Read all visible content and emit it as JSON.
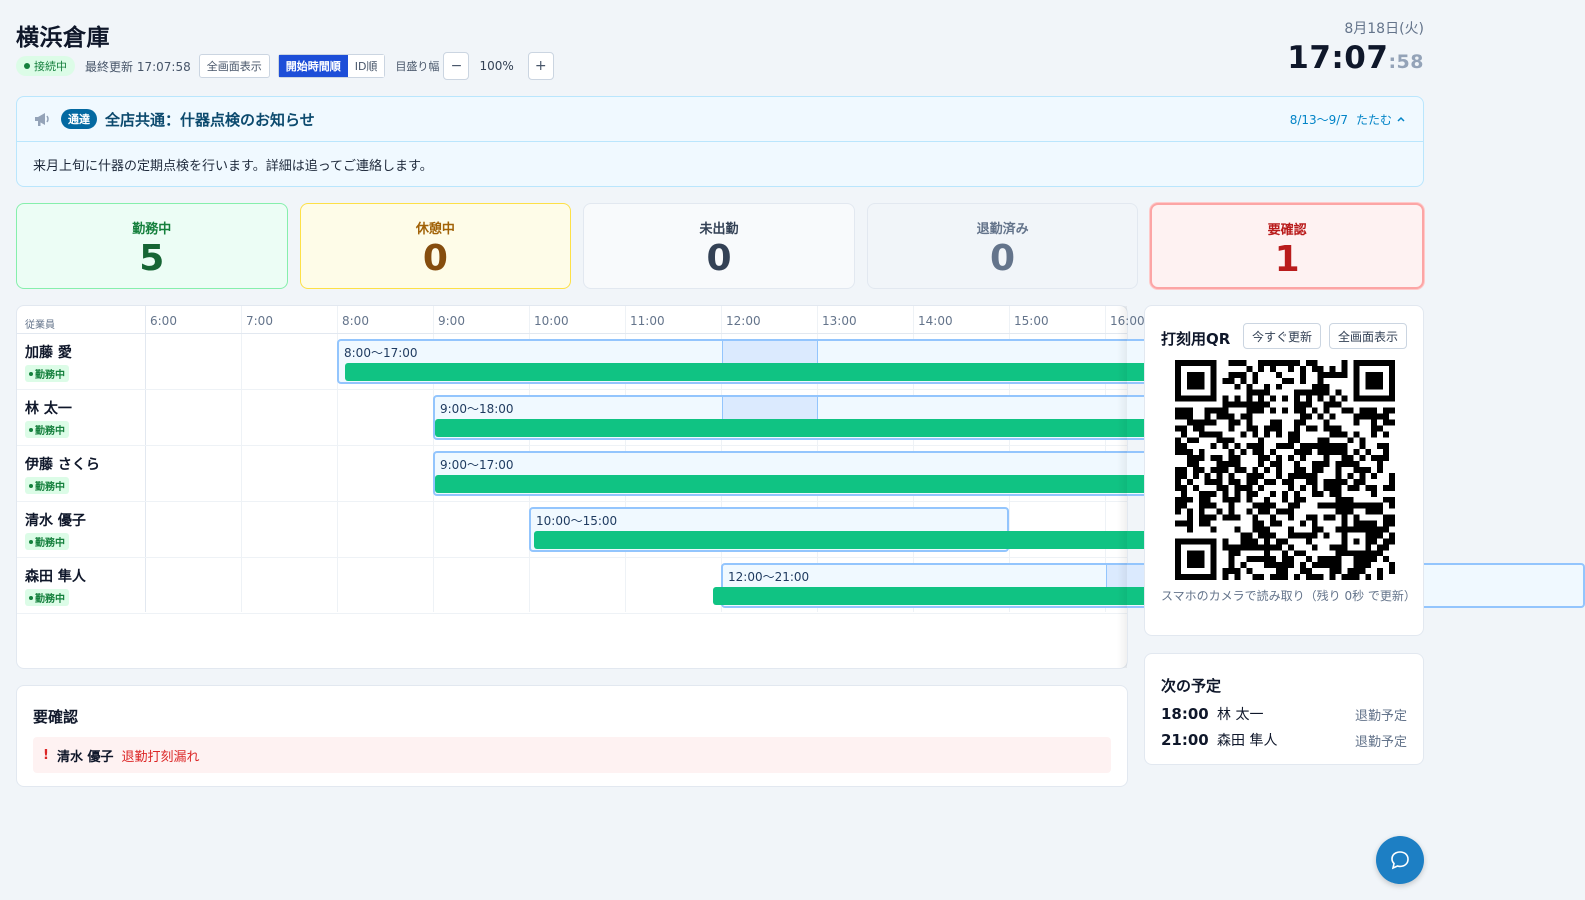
{
  "header": {
    "store_name": "横浜倉庫",
    "status": "接続中",
    "last_updated": "最終更新 17:07:58",
    "fullscreen_label": "全画面表示",
    "sort_options": [
      "開始時間順",
      "ID順"
    ],
    "sort_selected": "開始時間順",
    "scale_label": "目盛り幅",
    "zoom_minus": "−",
    "zoom_value": "100%",
    "zoom_plus": "+"
  },
  "clock": {
    "date": "8月18日(火)",
    "time": "17:07",
    "seconds": ":58"
  },
  "notice": {
    "tag": "通達",
    "title": "全店共通：什器点検のお知らせ",
    "period": "8/13〜9/7",
    "toggle_label": "たたむ",
    "body": "来月上旬に什器の定期点検を行います。詳細は追ってご連絡します。"
  },
  "stats": {
    "working": {
      "label": "勤務中",
      "value": "5"
    },
    "on_break": {
      "label": "休憩中",
      "value": "0"
    },
    "not_clocked_in": {
      "label": "未出勤",
      "value": "0"
    },
    "clocked_out": {
      "label": "退勤済み",
      "value": "0"
    },
    "needs_check": {
      "label": "要確認",
      "value": "1"
    }
  },
  "timeline": {
    "name_column_header": "従業員",
    "hours": [
      "6:00",
      "7:00",
      "8:00",
      "9:00",
      "10:00",
      "11:00",
      "12:00",
      "13:00",
      "14:00",
      "15:00",
      "16:00"
    ],
    "rows": [
      {
        "name": "加藤 愛",
        "status": "勤務中",
        "schedule": "8:00〜17:00",
        "sched_start": 8,
        "sched_end": 17,
        "break_start": 12,
        "break_end": 13,
        "actual_start": 8.08
      },
      {
        "name": "林 太一",
        "status": "勤務中",
        "schedule": "9:00〜18:00",
        "sched_start": 9,
        "sched_end": 18,
        "break_start": 12,
        "break_end": 13,
        "actual_start": 9.02
      },
      {
        "name": "伊藤 さくら",
        "status": "勤務中",
        "schedule": "9:00〜17:00",
        "sched_start": 9,
        "sched_end": 17,
        "break_start": null,
        "break_end": null,
        "actual_start": 9.02
      },
      {
        "name": "清水 優子",
        "status": "勤務中",
        "schedule": "10:00〜15:00",
        "sched_start": 10,
        "sched_end": 15,
        "break_start": null,
        "break_end": null,
        "actual_start": 10.05
      },
      {
        "name": "森田 隼人",
        "status": "勤務中",
        "schedule": "12:00〜21:00",
        "sched_start": 12,
        "sched_end": 21,
        "break_start": 16,
        "break_end": 17,
        "actual_start": 11.92
      }
    ]
  },
  "alerts": {
    "title": "要確認",
    "items": [
      {
        "mark": "!",
        "name": "清水 優子",
        "message": "退勤打刻漏れ"
      }
    ]
  },
  "qr": {
    "title": "打刻用QR",
    "refresh_label": "今すぐ更新",
    "fullscreen_label": "全画面表示",
    "caption": "スマホのカメラで読み取り（残り 0秒 で更新）"
  },
  "next_schedule": {
    "title": "次の予定",
    "items": [
      {
        "time": "18:00",
        "name": "林 太一",
        "type": "退勤予定"
      },
      {
        "time": "21:00",
        "name": "森田 隼人",
        "type": "退勤予定"
      }
    ]
  },
  "colors": {
    "accent": "#1d4ed8",
    "working_bar": "#10c383",
    "alert": "#dc2626",
    "fab": "#1d7fc4"
  }
}
